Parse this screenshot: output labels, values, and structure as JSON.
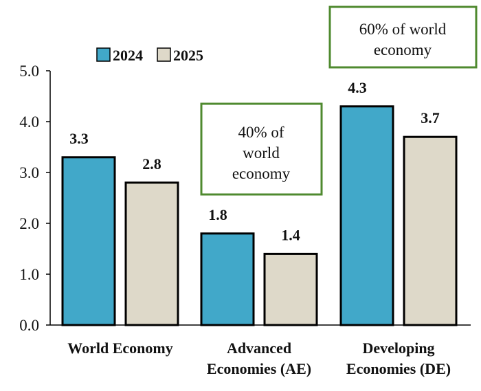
{
  "chart_data": {
    "type": "bar",
    "categories": [
      [
        "World Economy"
      ],
      [
        "Advanced",
        "Economies (AE)"
      ],
      [
        "Developing",
        "Economies (DE)"
      ]
    ],
    "series": [
      {
        "name": "2024",
        "color": "#41a8c9",
        "values": [
          3.3,
          1.8,
          4.3
        ]
      },
      {
        "name": "2025",
        "color": "#ded9c9",
        "values": [
          2.8,
          1.4,
          3.7
        ]
      }
    ],
    "value_labels": [
      [
        "3.3",
        "1.8",
        "4.3"
      ],
      [
        "2.8",
        "1.4",
        "3.7"
      ]
    ],
    "ylim": [
      0,
      5
    ],
    "yticks": [
      "0.0",
      "1.0",
      "2.0",
      "3.0",
      "4.0",
      "5.0"
    ],
    "grid": false,
    "legend_position": "top-left",
    "annotations": [
      {
        "lines": [
          "40% of",
          "world",
          "economy"
        ],
        "border_color": "#4f8a2f"
      },
      {
        "lines": [
          "60% of world",
          "economy"
        ],
        "border_color": "#4f8a2f"
      }
    ],
    "title": "",
    "xlabel": "",
    "ylabel": ""
  }
}
